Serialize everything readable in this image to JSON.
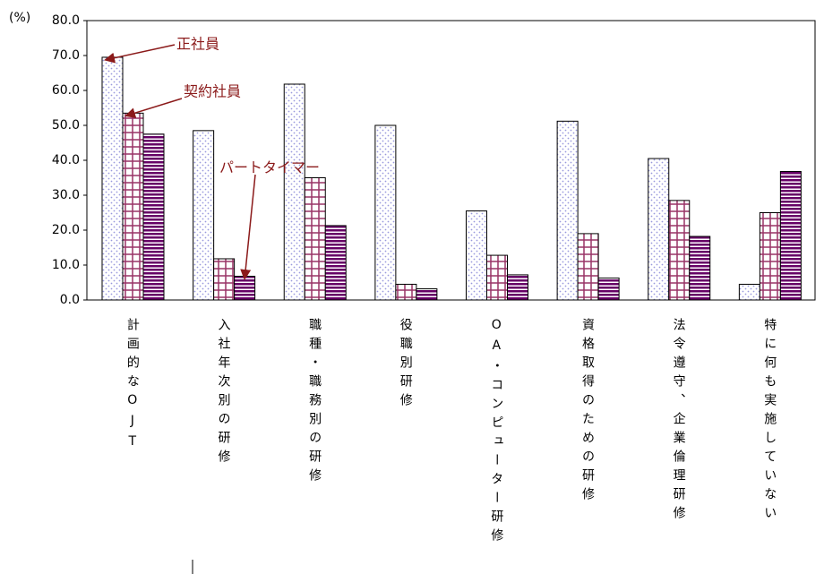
{
  "chart_data": {
    "type": "bar",
    "unit_label": "(%)",
    "categories": [
      "計画的なOJT",
      "入社年次別の研修",
      "職種・職務別の研修",
      "役職別研修",
      "OA・コンピューター研修",
      "資格取得のための研修",
      "法令遵守、企業倫理研修",
      "特に何も実施していない"
    ],
    "series": [
      {
        "name": "正社員",
        "color": "#9999dd",
        "values": [
          69.5,
          48.5,
          61.8,
          50.0,
          25.5,
          51.2,
          40.5,
          4.5
        ]
      },
      {
        "name": "契約社員",
        "color": "#993366",
        "values": [
          53.5,
          11.8,
          35.0,
          4.5,
          12.8,
          19.0,
          28.5,
          25.0
        ]
      },
      {
        "name": "パートタイマー",
        "color": "#660066",
        "values": [
          47.5,
          6.8,
          21.3,
          3.2,
          7.2,
          6.3,
          18.2,
          36.8
        ]
      }
    ],
    "ylim": [
      0,
      80
    ],
    "yticks": [
      {
        "value": 0,
        "label": "0.0"
      },
      {
        "value": 10,
        "label": "10.0"
      },
      {
        "value": 20,
        "label": "20.0"
      },
      {
        "value": 30,
        "label": "30.0"
      },
      {
        "value": 40,
        "label": "40.0"
      },
      {
        "value": 50,
        "label": "50.0"
      },
      {
        "value": 60,
        "label": "60.0"
      },
      {
        "value": 70,
        "label": "70.0"
      },
      {
        "value": 80,
        "label": "80.0"
      }
    ],
    "annotation_color": "#8b1a1a"
  }
}
